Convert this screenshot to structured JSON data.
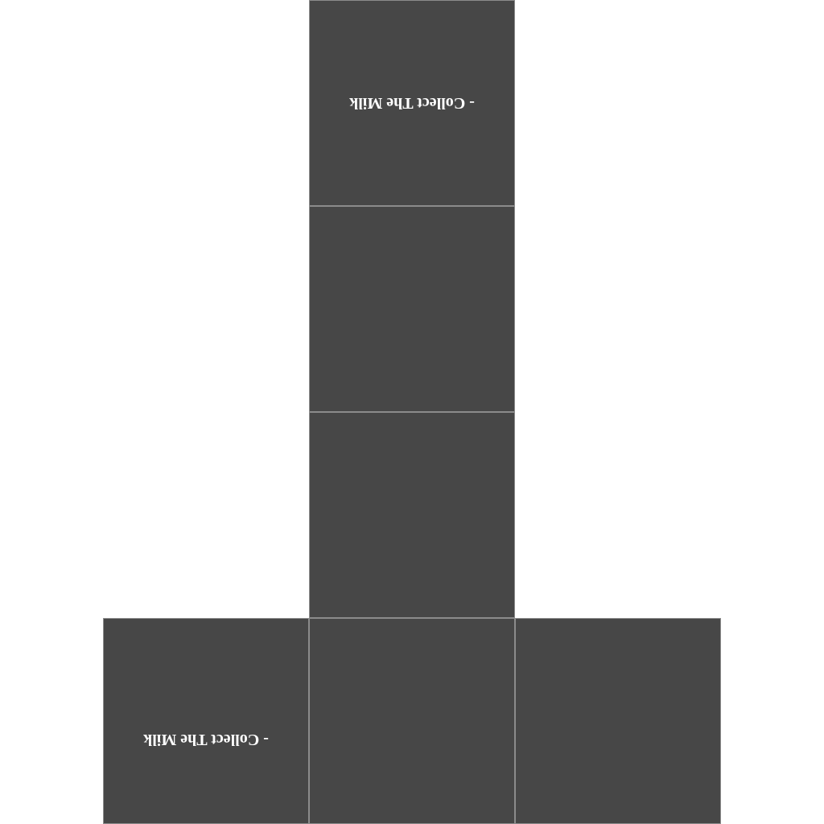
{
  "colors": {
    "background": "#ffffff",
    "face": "#474747",
    "face_border": "#8c8c8c",
    "label": "#ffffff"
  },
  "faces": {
    "top": {
      "label": "- Collect The Milk"
    },
    "mid_1": {
      "label": ""
    },
    "mid_2": {
      "label": ""
    },
    "bottom_left": {
      "label": "- Collect The Milk"
    },
    "bottom_center": {
      "label": ""
    },
    "bottom_right": {
      "label": ""
    }
  }
}
